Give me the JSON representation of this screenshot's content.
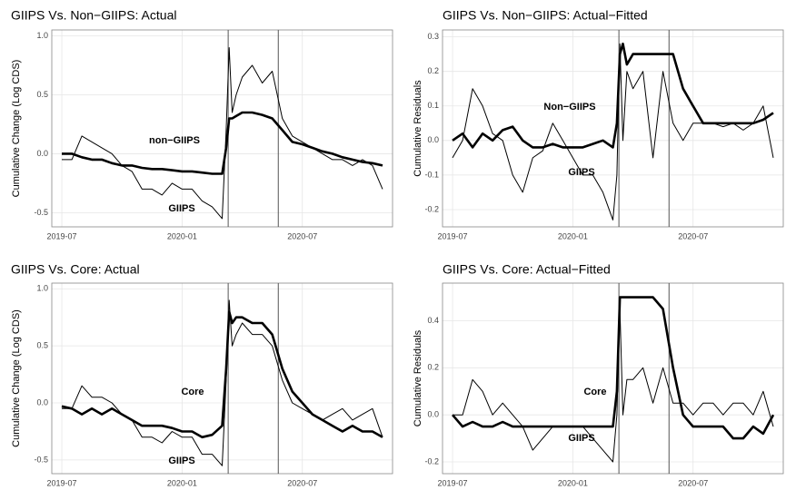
{
  "chart_data": [
    {
      "type": "line",
      "title": "GIIPS Vs. Non−GIIPS: Actual",
      "y_label": "Cumulative Change (Log CDS)",
      "x": [
        0,
        0.5,
        1,
        1.5,
        2,
        2.5,
        3,
        3.5,
        4,
        4.5,
        5,
        5.5,
        6,
        6.5,
        7,
        7.5,
        8,
        8.2,
        8.35,
        8.5,
        8.7,
        9,
        9.5,
        10,
        10.5,
        11,
        11.5,
        12,
        12.5,
        13,
        13.5,
        14,
        14.5,
        15,
        15.5,
        16
      ],
      "xlim": [
        -0.5,
        16.5
      ],
      "xticks": [
        {
          "value": 0,
          "label": "2019-07"
        },
        {
          "value": 6,
          "label": "2020-01"
        },
        {
          "value": 12,
          "label": "2020-07"
        }
      ],
      "ylim": [
        -0.62,
        1.05
      ],
      "yticks": [
        -0.5,
        {
          "value": 0,
          "label": "0.0"
        },
        0.5,
        {
          "value": 1,
          "label": "1.0"
        }
      ],
      "vlines": [
        8.3,
        10.8
      ],
      "grid": true,
      "series": [
        {
          "name": "GIIPS",
          "color": "#000000",
          "values": [
            -0.05,
            -0.05,
            0.15,
            0.1,
            0.05,
            0.0,
            -0.1,
            -0.15,
            -0.3,
            -0.3,
            -0.35,
            -0.25,
            -0.3,
            -0.3,
            -0.4,
            -0.45,
            -0.55,
            0.2,
            0.9,
            0.35,
            0.5,
            0.65,
            0.75,
            0.6,
            0.7,
            0.3,
            0.15,
            0.1,
            0.05,
            0.0,
            -0.05,
            -0.05,
            -0.1,
            -0.05,
            -0.1,
            -0.3
          ]
        },
        {
          "name": "non−GIIPS",
          "color": "#000000",
          "values": [
            0,
            0,
            -0.03,
            -0.05,
            -0.05,
            -0.08,
            -0.1,
            -0.1,
            -0.12,
            -0.13,
            -0.13,
            -0.14,
            -0.15,
            -0.15,
            -0.16,
            -0.17,
            -0.17,
            0.05,
            0.3,
            0.3,
            0.32,
            0.35,
            0.35,
            0.33,
            0.3,
            0.2,
            0.1,
            0.08,
            0.05,
            0.02,
            0.0,
            -0.03,
            -0.05,
            -0.07,
            -0.08,
            -0.1
          ]
        }
      ]
    },
    {
      "type": "line",
      "title": "GIIPS Vs. Non−GIIPS: Actual−Fitted",
      "y_label": "Cumulative Residuals",
      "x": [
        0,
        0.5,
        1,
        1.5,
        2,
        2.5,
        3,
        3.5,
        4,
        4.5,
        5,
        5.5,
        6,
        6.5,
        7,
        7.5,
        8,
        8.2,
        8.35,
        8.5,
        8.7,
        9,
        9.5,
        10,
        10.5,
        11,
        11.5,
        12,
        12.5,
        13,
        13.5,
        14,
        14.5,
        15,
        15.5,
        16
      ],
      "xlim": [
        -0.5,
        16.5
      ],
      "xticks": [
        {
          "value": 0,
          "label": "2019-07"
        },
        {
          "value": 6,
          "label": "2020-01"
        },
        {
          "value": 12,
          "label": "2020-07"
        }
      ],
      "ylim": [
        -0.25,
        0.32
      ],
      "yticks": [
        -0.2,
        -0.1,
        {
          "value": 0,
          "label": "0.0"
        },
        0.1,
        0.2,
        0.3
      ],
      "vlines": [
        8.3,
        10.8
      ],
      "grid": true,
      "series": [
        {
          "name": "GIIPS",
          "color": "#000000",
          "values": [
            -0.05,
            0.0,
            0.15,
            0.1,
            0.02,
            0.0,
            -0.1,
            -0.15,
            -0.05,
            -0.03,
            0.05,
            0.0,
            -0.05,
            -0.1,
            -0.1,
            -0.15,
            -0.23,
            -0.1,
            0.28,
            0.0,
            0.2,
            0.15,
            0.2,
            -0.05,
            0.2,
            0.05,
            0.0,
            0.05,
            0.05,
            0.05,
            0.04,
            0.05,
            0.03,
            0.05,
            0.1,
            -0.05
          ]
        },
        {
          "name": "Non−GIIPS",
          "color": "#000000",
          "values": [
            0.0,
            0.02,
            -0.02,
            0.02,
            0.0,
            0.03,
            0.04,
            0.0,
            -0.02,
            -0.02,
            -0.01,
            -0.02,
            -0.02,
            -0.02,
            -0.01,
            0.0,
            -0.02,
            0.05,
            0.25,
            0.28,
            0.22,
            0.25,
            0.25,
            0.25,
            0.25,
            0.25,
            0.15,
            0.1,
            0.05,
            0.05,
            0.05,
            0.05,
            0.05,
            0.05,
            0.06,
            0.08
          ]
        }
      ]
    },
    {
      "type": "line",
      "title": "GIIPS Vs. Core: Actual",
      "y_label": "Cumulative Change (Log CDS)",
      "x": [
        0,
        0.5,
        1,
        1.5,
        2,
        2.5,
        3,
        3.5,
        4,
        4.5,
        5,
        5.5,
        6,
        6.5,
        7,
        7.5,
        8,
        8.2,
        8.35,
        8.5,
        8.7,
        9,
        9.5,
        10,
        10.5,
        11,
        11.5,
        12,
        12.5,
        13,
        13.5,
        14,
        14.5,
        15,
        15.5,
        16
      ],
      "xlim": [
        -0.5,
        16.5
      ],
      "xticks": [
        {
          "value": 0,
          "label": "2019-07"
        },
        {
          "value": 6,
          "label": "2020-01"
        },
        {
          "value": 12,
          "label": "2020-07"
        }
      ],
      "ylim": [
        -0.62,
        1.05
      ],
      "yticks": [
        -0.5,
        {
          "value": 0,
          "label": "0.0"
        },
        0.5,
        {
          "value": 1,
          "label": "1.0"
        }
      ],
      "vlines": [
        8.3,
        10.8
      ],
      "grid": true,
      "series": [
        {
          "name": "GIIPS",
          "color": "#000000",
          "values": [
            -0.05,
            -0.05,
            0.15,
            0.05,
            0.05,
            0.0,
            -0.1,
            -0.15,
            -0.3,
            -0.3,
            -0.35,
            -0.25,
            -0.3,
            -0.3,
            -0.45,
            -0.45,
            -0.55,
            0.2,
            0.9,
            0.5,
            0.6,
            0.7,
            0.6,
            0.6,
            0.5,
            0.2,
            0.0,
            -0.05,
            -0.1,
            -0.15,
            -0.1,
            -0.05,
            -0.15,
            -0.1,
            -0.05,
            -0.3
          ]
        },
        {
          "name": "Core",
          "color": "#000000",
          "values": [
            -0.03,
            -0.05,
            -0.1,
            -0.05,
            -0.1,
            -0.05,
            -0.1,
            -0.15,
            -0.2,
            -0.2,
            -0.2,
            -0.22,
            -0.25,
            -0.25,
            -0.3,
            -0.28,
            -0.2,
            0.3,
            0.8,
            0.7,
            0.75,
            0.75,
            0.7,
            0.7,
            0.6,
            0.3,
            0.1,
            0.0,
            -0.1,
            -0.15,
            -0.2,
            -0.25,
            -0.2,
            -0.25,
            -0.25,
            -0.3
          ]
        }
      ]
    },
    {
      "type": "line",
      "title": "GIIPS Vs. Core: Actual−Fitted",
      "y_label": "Cumulative Residuals",
      "x": [
        0,
        0.5,
        1,
        1.5,
        2,
        2.5,
        3,
        3.5,
        4,
        4.5,
        5,
        5.5,
        6,
        6.5,
        7,
        7.5,
        8,
        8.2,
        8.35,
        8.5,
        8.7,
        9,
        9.5,
        10,
        10.5,
        11,
        11.5,
        12,
        12.5,
        13,
        13.5,
        14,
        14.5,
        15,
        15.5,
        16
      ],
      "xlim": [
        -0.5,
        16.5
      ],
      "xticks": [
        {
          "value": 0,
          "label": "2019-07"
        },
        {
          "value": 6,
          "label": "2020-01"
        },
        {
          "value": 12,
          "label": "2020-07"
        }
      ],
      "ylim": [
        -0.25,
        0.56
      ],
      "yticks": [
        -0.2,
        {
          "value": 0,
          "label": "0.0"
        },
        0.2,
        0.4
      ],
      "vlines": [
        8.3,
        10.8
      ],
      "grid": true,
      "series": [
        {
          "name": "GIIPS",
          "color": "#000000",
          "values": [
            0.0,
            0.0,
            0.15,
            0.1,
            0.0,
            0.05,
            0.0,
            -0.05,
            -0.15,
            -0.1,
            -0.05,
            -0.05,
            -0.05,
            -0.05,
            -0.1,
            -0.15,
            -0.2,
            0.0,
            0.45,
            0.0,
            0.15,
            0.15,
            0.2,
            0.05,
            0.2,
            0.05,
            0.05,
            0.0,
            0.05,
            0.05,
            0.0,
            0.05,
            0.05,
            0.0,
            0.1,
            -0.05
          ]
        },
        {
          "name": "Core",
          "color": "#000000",
          "values": [
            0.0,
            -0.05,
            -0.03,
            -0.05,
            -0.05,
            -0.03,
            -0.05,
            -0.05,
            -0.05,
            -0.05,
            -0.05,
            -0.05,
            -0.05,
            -0.05,
            -0.05,
            -0.05,
            -0.05,
            0.1,
            0.5,
            0.5,
            0.5,
            0.5,
            0.5,
            0.5,
            0.45,
            0.2,
            0.0,
            -0.05,
            -0.05,
            -0.05,
            -0.05,
            -0.1,
            -0.1,
            -0.05,
            -0.08,
            0.0
          ]
        }
      ]
    }
  ]
}
